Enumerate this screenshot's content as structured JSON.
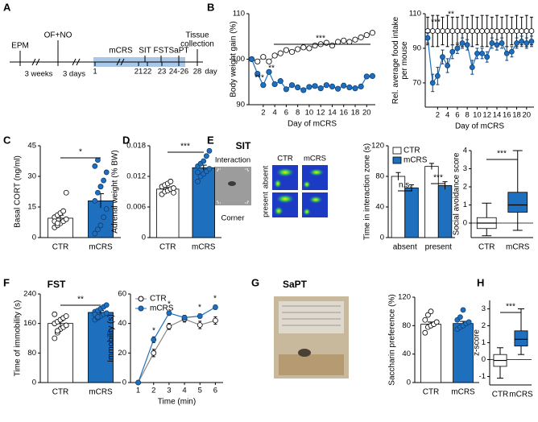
{
  "panels": [
    {
      "label": "A"
    },
    {
      "label": "B"
    },
    {
      "label": "C"
    },
    {
      "label": "D"
    },
    {
      "label": "E",
      "title": "SIT"
    },
    {
      "label": "F",
      "title": "FST"
    },
    {
      "label": "G",
      "title": "SaPT"
    },
    {
      "label": "H"
    }
  ],
  "timeline": {
    "events": [
      "EPM",
      "OF+NO",
      "mCRS",
      "SIT",
      "FST",
      "SaPT",
      [
        "Tissue",
        "collection"
      ]
    ],
    "intervals": [
      "3 weeks",
      "3 days"
    ],
    "days": [
      1,
      21,
      22,
      23,
      "24-26",
      28
    ],
    "unit": "day"
  },
  "sit_images": {
    "labels": [
      "Interaction",
      "Corner"
    ],
    "columns": [
      "CTR",
      "mCRS"
    ],
    "rows": [
      "absent",
      "present"
    ]
  },
  "chart_data": [
    {
      "type": "line",
      "ylabel": "Body weight gain (%)",
      "xlabel": "Day of mCRS",
      "x": [
        0,
        1,
        2,
        3,
        4,
        5,
        6,
        7,
        8,
        9,
        10,
        11,
        12,
        13,
        14,
        15,
        16,
        17,
        18,
        19,
        20,
        21
      ],
      "xlim": [
        -0.5,
        21.5
      ],
      "xticks": [
        2,
        4,
        6,
        8,
        10,
        12,
        14,
        16,
        18,
        20
      ],
      "ylim": [
        90,
        110
      ],
      "yticks": [
        90,
        100,
        110
      ],
      "series": [
        {
          "color": "#ffffff",
          "values": [
            100,
            99.5,
            100.5,
            99.5,
            100.8,
            101.3,
            102,
            101.6,
            102.2,
            102.6,
            102.4,
            103,
            103.3,
            103.6,
            103,
            103.8,
            104.1,
            103.8,
            104.3,
            104.8,
            105.3,
            105.8
          ]
        },
        {
          "color": "#1f6fbf",
          "values": [
            100,
            96.8,
            94.3,
            97.2,
            94.5,
            95.2,
            93.4,
            94.3,
            93.8,
            93.2,
            93.9,
            94.1,
            93.6,
            94.3,
            94,
            93.5,
            94.2,
            93.8,
            93.6,
            94,
            96.2,
            96.3
          ]
        }
      ],
      "annotations": [
        "***",
        "**",
        "***"
      ]
    },
    {
      "type": "line",
      "ylabel": [
        "Rel. average food intake",
        "per mouse"
      ],
      "xlabel": "Day of mCRS",
      "x": [
        0,
        1,
        2,
        3,
        4,
        5,
        6,
        7,
        8,
        9,
        10,
        11,
        12,
        13,
        14,
        15,
        16,
        17,
        18,
        19,
        20,
        21
      ],
      "xlim": [
        -0.5,
        21.5
      ],
      "xticks": [
        2,
        4,
        6,
        8,
        10,
        12,
        14,
        16,
        18,
        20
      ],
      "ylim": [
        56,
        110
      ],
      "yticks": [
        70,
        90,
        110
      ],
      "series": [
        {
          "color": "#ffffff",
          "values": [
            100,
            100,
            100,
            100,
            100,
            100,
            100,
            100,
            100,
            100,
            100,
            100,
            100,
            100,
            100,
            100,
            100,
            100,
            100,
            100,
            100,
            100
          ],
          "errors": [
            8,
            9,
            9,
            8,
            9,
            8,
            8,
            9,
            8,
            9,
            8,
            9,
            9,
            8,
            9,
            8,
            9,
            8,
            9,
            8,
            9,
            8
          ]
        },
        {
          "color": "#1f6fbf",
          "values": [
            96,
            70,
            74,
            85,
            80,
            88,
            90,
            93,
            92,
            79,
            87,
            87,
            85,
            93,
            92,
            93,
            87,
            88,
            93,
            94,
            93,
            94
          ],
          "errors": [
            3,
            5,
            5,
            4,
            4,
            4,
            3,
            3,
            3,
            4,
            3,
            3,
            3,
            3,
            3,
            3,
            4,
            3,
            3,
            3,
            3,
            3
          ]
        }
      ],
      "annotations": [
        "***",
        "**"
      ]
    },
    {
      "type": "bar",
      "ylabel": "Basal CORT (ng/ml)",
      "categories": [
        "CTR",
        "mCRS"
      ],
      "colors": [
        "#ffffff",
        "#1f6fbf"
      ],
      "values": [
        9.5,
        18
      ],
      "errors": [
        1.5,
        3.5
      ],
      "ylim": [
        0,
        45
      ],
      "yticks": [
        0,
        15,
        30,
        45
      ],
      "points": [
        [
          5,
          6,
          7,
          8,
          9,
          10,
          11,
          12,
          13,
          22,
          8,
          7
        ],
        [
          2,
          4,
          6,
          10,
          14,
          18,
          22,
          25,
          28,
          32,
          35,
          38,
          25
        ]
      ],
      "annotations": [
        "*"
      ]
    },
    {
      "type": "bar",
      "ylabel": "Adrenal weight (% BW)",
      "categories": [
        "CTR",
        "mCRS"
      ],
      "colors": [
        "#ffffff",
        "#1f6fbf"
      ],
      "values": [
        0.0095,
        0.0137
      ],
      "errors": [
        0.0003,
        0.0005
      ],
      "ylim": [
        0,
        0.018
      ],
      "yticks": [
        0,
        0.006,
        0.012,
        0.018
      ],
      "points": [
        [
          0.0085,
          0.009,
          0.0092,
          0.0095,
          0.0097,
          0.01,
          0.0103,
          0.0106,
          0.011,
          0.0088
        ],
        [
          0.011,
          0.012,
          0.0125,
          0.013,
          0.0135,
          0.014,
          0.0145,
          0.015,
          0.016,
          0.017,
          0.0128
        ]
      ],
      "annotations": [
        "***"
      ]
    },
    {
      "type": "grouped_bar",
      "ylabel": "Time in interaction zone (s)",
      "categories": [
        "absent",
        "present"
      ],
      "ylim": [
        0,
        120
      ],
      "yticks": [
        0,
        40,
        80,
        120
      ],
      "legend": "upper left",
      "series": [
        {
          "name": "CTR",
          "color": "#ffffff",
          "values": [
            80,
            93
          ],
          "errors": [
            5,
            4
          ]
        },
        {
          "name": "mCRS",
          "color": "#1f6fbf",
          "values": [
            65,
            68
          ],
          "errors": [
            4,
            5
          ]
        }
      ],
      "annotations": [
        "n.s.",
        "***"
      ]
    },
    {
      "type": "box",
      "ylabel": "Social avoidance score",
      "categories": [
        "CTR",
        "mCRS"
      ],
      "colors": [
        "#ffffff",
        "#1f6fbf"
      ],
      "ylim": [
        -0.8,
        4
      ],
      "yticks": [
        0,
        1,
        2,
        3,
        4
      ],
      "refline": 0,
      "boxes": [
        {
          "min": -0.7,
          "q1": -0.3,
          "median": 0,
          "q3": 0.3,
          "max": 1.1
        },
        {
          "min": -0.4,
          "q1": 0.6,
          "median": 1,
          "q3": 1.7,
          "max": 4
        }
      ],
      "annotations": [
        "***"
      ]
    },
    {
      "type": "bar",
      "ylabel": "Time of immobility (s)",
      "categories": [
        "CTR",
        "mCRS"
      ],
      "colors": [
        "#ffffff",
        "#1f6fbf"
      ],
      "values": [
        160,
        190
      ],
      "errors": [
        7,
        5
      ],
      "ylim": [
        0,
        240
      ],
      "yticks": [
        0,
        80,
        160,
        240
      ],
      "points": [
        [
          120,
          135,
          145,
          150,
          155,
          160,
          165,
          170,
          175,
          180,
          185,
          140
        ],
        [
          170,
          175,
          180,
          185,
          188,
          192,
          195,
          200,
          205,
          210,
          185,
          178
        ]
      ],
      "annotations": [
        "**"
      ]
    },
    {
      "type": "line",
      "ylabel": "Immobility (s)",
      "xlabel": "Time (min)",
      "x": [
        1,
        2,
        3,
        4,
        5,
        6
      ],
      "xlim": [
        0.5,
        6.5
      ],
      "xticks": [
        1,
        2,
        3,
        4,
        5,
        6
      ],
      "ylim": [
        0,
        60
      ],
      "yticks": [
        0,
        20,
        40,
        60
      ],
      "legend": "upper left",
      "series": [
        {
          "name": "CTR",
          "color": "#ffffff",
          "values": [
            0,
            20,
            38,
            43,
            39,
            42
          ],
          "errors": [
            0.5,
            2.5,
            2,
            2,
            2.5,
            2.5
          ]
        },
        {
          "name": "mCRS",
          "color": "#1f6fbf",
          "values": [
            0,
            29,
            47,
            44,
            45,
            51
          ],
          "errors": [
            0.5,
            2,
            1.5,
            1.5,
            1.5,
            1.5
          ]
        }
      ],
      "annotations": [
        "*",
        "*",
        "*",
        "*"
      ]
    },
    {
      "type": "bar",
      "ylabel": "Saccharin preference (%)",
      "categories": [
        "CTR",
        "mCRS"
      ],
      "colors": [
        "#ffffff",
        "#1f6fbf"
      ],
      "values": [
        82,
        83
      ],
      "errors": [
        3,
        3
      ],
      "ylim": [
        0,
        120
      ],
      "yticks": [
        0,
        40,
        80,
        120
      ],
      "points": [
        [
          70,
          78,
          80,
          82,
          85,
          88,
          95,
          100
        ],
        [
          75,
          78,
          80,
          83,
          85,
          88,
          92,
          102
        ]
      ]
    },
    {
      "type": "box",
      "ylabel": "z-score",
      "categories": [
        "CTR",
        "mCRS"
      ],
      "colors": [
        "#ffffff",
        "#1f6fbf"
      ],
      "ylim": [
        -1.5,
        3.5
      ],
      "yticks": [
        -1,
        0,
        1,
        2,
        3
      ],
      "refline": 0,
      "boxes": [
        {
          "min": -1.1,
          "q1": -0.4,
          "median": -0.05,
          "q3": 0.3,
          "max": 0.7
        },
        {
          "min": 0.3,
          "q1": 0.8,
          "median": 1.2,
          "q3": 1.7,
          "max": 3
        }
      ],
      "annotations": [
        "***"
      ]
    }
  ]
}
